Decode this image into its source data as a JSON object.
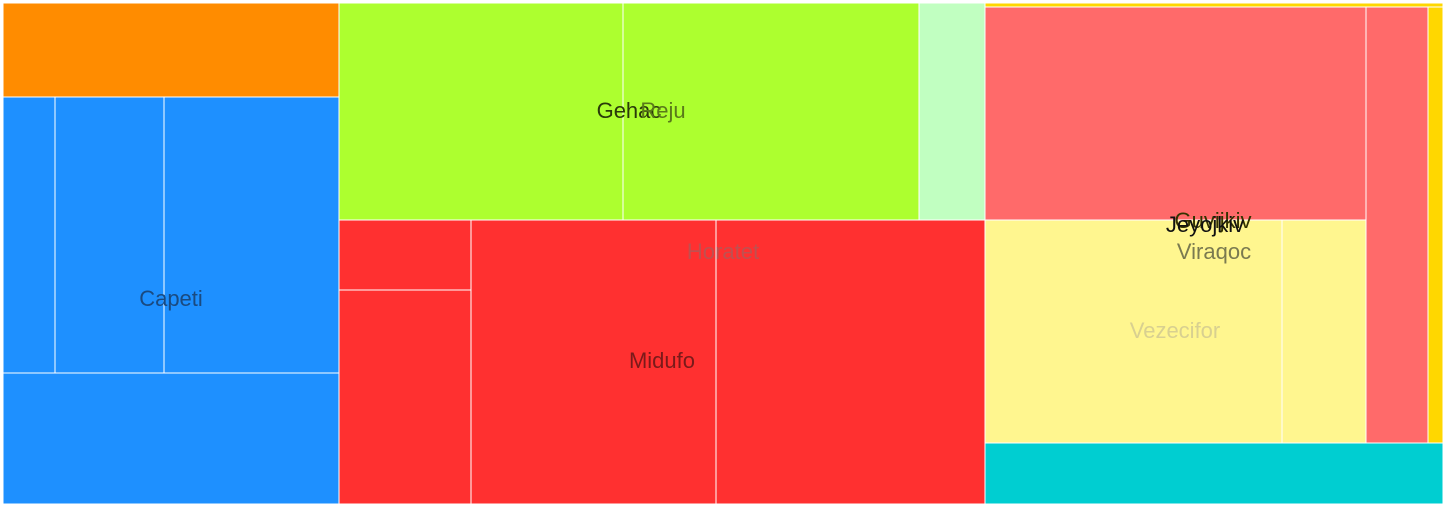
{
  "chart_data": {
    "type": "treemap",
    "tiles": [
      {
        "id": "orange-top",
        "value": 3.07,
        "color": "#FF8C00"
      },
      {
        "id": "blue-a",
        "value": 1.42,
        "color": "#1E90FF"
      },
      {
        "id": "blue-b",
        "value": 3.01,
        "color": "#1E90FF"
      },
      {
        "id": "blue-c",
        "value": 4.83,
        "color": "#1E90FF"
      },
      {
        "id": "blue-bottom",
        "value": 4.2,
        "color": "#1E90FF"
      },
      {
        "id": "green-a",
        "value": 6.08,
        "color": "#ADFF2F"
      },
      {
        "id": "green-b",
        "value": 6.35,
        "color": "#ADFF2F"
      },
      {
        "id": "mint",
        "value": 1.42,
        "color": "#C1FFC1"
      },
      {
        "id": "red-a",
        "value": 0.92,
        "color": "#FF3030"
      },
      {
        "id": "red-b",
        "value": 2.79,
        "color": "#FF3030"
      },
      {
        "id": "red-c",
        "value": 6.78,
        "color": "#FF3030"
      },
      {
        "id": "red-d",
        "value": 7.38,
        "color": "#FF3030"
      },
      {
        "id": "coral-top",
        "value": 5.57,
        "color": "#FF6A6A"
      },
      {
        "id": "coral-strip",
        "value": 2.15,
        "color": "#FF6A6A"
      },
      {
        "id": "yellow-a",
        "value": 4.54,
        "color": "#FFF68F"
      },
      {
        "id": "yellow-b",
        "value": 1.32,
        "color": "#FFF68F"
      },
      {
        "id": "gold-top",
        "value": 0.05,
        "color": "#FFD700"
      },
      {
        "id": "gold-right",
        "value": 0.37,
        "color": "#FFD700"
      },
      {
        "id": "cyan-bottom",
        "value": 1.73,
        "color": "#00CED1"
      }
    ],
    "labels": [
      {
        "text": "Capeti",
        "color": "#1a4a80"
      },
      {
        "text": "Gehac",
        "color": "#2a3a0a"
      },
      {
        "text": "Reju",
        "color": "#5a7a1a"
      },
      {
        "text": "Horatet",
        "color": "#c05050"
      },
      {
        "text": "Midufo",
        "color": "#7a1a1a"
      },
      {
        "text": "Guvijkiv",
        "color": "#333300"
      },
      {
        "text": "Jeyojkiv",
        "color": "#111111"
      },
      {
        "text": "Viraqoc",
        "color": "#7a7a50"
      },
      {
        "text": "Vezecifor",
        "color": "#d8d090"
      }
    ]
  }
}
